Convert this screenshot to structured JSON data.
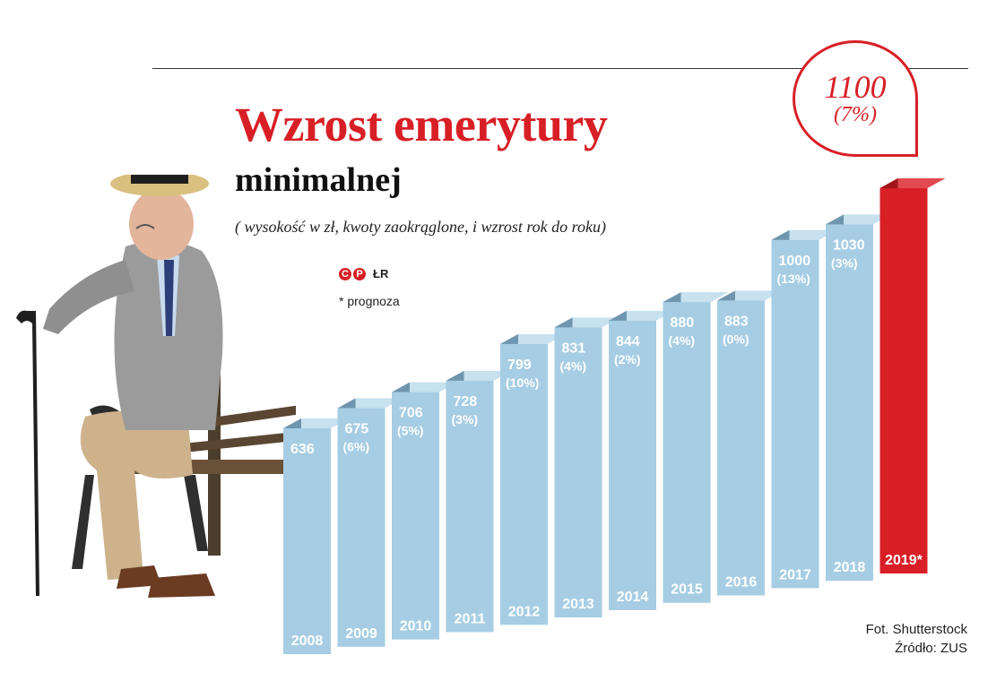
{
  "header": {
    "title": "Wzrost emerytury",
    "subtitle": "minimalnej",
    "note": "( wysokość w zł, kwoty zaokrąglone, i wzrost rok do roku)",
    "credit_letters": [
      "C",
      "P"
    ],
    "credit_initials": "ŁR",
    "prognoza": "* prognoza"
  },
  "highlight": {
    "value": "1100",
    "change": "(7%)"
  },
  "footer": {
    "photo": "Fot. Shutterstock",
    "source": "Źródło: ZUS"
  },
  "colors": {
    "accent": "#d81f26",
    "bar": "#a6cde3",
    "bar_side": "#6f96ae",
    "bar_top": "#c7e1ef"
  },
  "chart_data": {
    "type": "bar",
    "categories": [
      "2008",
      "2009",
      "2010",
      "2011",
      "2012",
      "2013",
      "2014",
      "2015",
      "2016",
      "2017",
      "2018",
      "2019*"
    ],
    "values": [
      636,
      675,
      706,
      728,
      799,
      831,
      844,
      880,
      883,
      1000,
      1030,
      1100
    ],
    "change_labels": [
      "",
      "(6%)",
      "(5%)",
      "(3%)",
      "(10%)",
      "(4%)",
      "(2%)",
      "(4%)",
      "(0%)",
      "(13%)",
      "(3%)",
      "(7%)"
    ],
    "forecast": [
      false,
      false,
      false,
      false,
      false,
      false,
      false,
      false,
      false,
      false,
      false,
      true
    ],
    "ylabel": "",
    "xlabel": ""
  }
}
